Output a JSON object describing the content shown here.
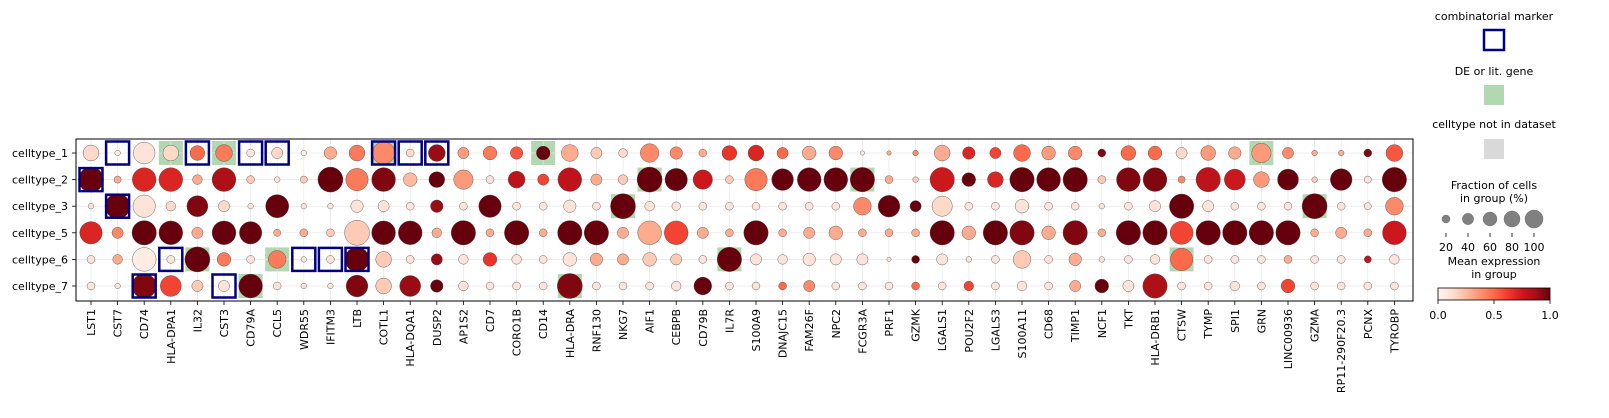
{
  "chart_data": {
    "type": "dotplot",
    "rows": [
      "celltype_1",
      "celltype_2",
      "celltype_3",
      "celltype_5",
      "celltype_6",
      "celltype_7"
    ],
    "genes": [
      "LST1",
      "CST7",
      "CD74",
      "HLA-DPA1",
      "IL32",
      "CST3",
      "CD79A",
      "CCL5",
      "WDR55",
      "IFITM3",
      "LTB",
      "COTL1",
      "HLA-DQA1",
      "DUSP2",
      "AP1S2",
      "CD7",
      "CORO1B",
      "CD14",
      "HLA-DRA",
      "RNF130",
      "NKG7",
      "AIF1",
      "CEBPB",
      "CD79B",
      "IL7R",
      "S100A9",
      "DNAJC15",
      "FAM26F",
      "NPC2",
      "FCGR3A",
      "PRF1",
      "GZMK",
      "LGALS1",
      "POU2F2",
      "LGALS3",
      "S100A11",
      "CD68",
      "TIMP1",
      "NCF1",
      "TKT",
      "HLA-DRB1",
      "CTSW",
      "TYMP",
      "SPI1",
      "GRN",
      "LINC00936",
      "GZMA",
      "RP11-290F20.3",
      "PCNX",
      "TYROBP"
    ],
    "size": [
      [
        40,
        5,
        75,
        40,
        35,
        45,
        10,
        20,
        5,
        25,
        40,
        80,
        10,
        45,
        20,
        30,
        25,
        30,
        45,
        20,
        12,
        55,
        25,
        10,
        35,
        40,
        20,
        30,
        30,
        3,
        3,
        5,
        40,
        25,
        20,
        45,
        30,
        30,
        10,
        35,
        30,
        20,
        35,
        25,
        60,
        20,
        5,
        5,
        10,
        45
      ],
      [
        100,
        8,
        90,
        90,
        15,
        90,
        10,
        5,
        8,
        100,
        80,
        90,
        30,
        40,
        60,
        10,
        45,
        20,
        90,
        20,
        15,
        100,
        80,
        60,
        10,
        80,
        75,
        90,
        90,
        95,
        10,
        5,
        95,
        30,
        40,
        95,
        90,
        95,
        10,
        90,
        90,
        8,
        95,
        70,
        40,
        70,
        5,
        75,
        8,
        95
      ],
      [
        5,
        100,
        80,
        15,
        70,
        20,
        5,
        85,
        5,
        5,
        25,
        20,
        10,
        25,
        10,
        80,
        10,
        10,
        25,
        10,
        100,
        15,
        12,
        10,
        10,
        10,
        10,
        10,
        10,
        50,
        75,
        20,
        65,
        10,
        10,
        30,
        10,
        10,
        5,
        10,
        20,
        95,
        20,
        10,
        10,
        10,
        100,
        10,
        8,
        50
      ],
      [
        80,
        20,
        95,
        90,
        20,
        90,
        80,
        8,
        10,
        10,
        100,
        90,
        90,
        15,
        95,
        10,
        95,
        10,
        95,
        95,
        20,
        90,
        90,
        20,
        10,
        95,
        10,
        20,
        30,
        10,
        10,
        10,
        95,
        30,
        95,
        95,
        30,
        95,
        10,
        95,
        95,
        85,
        95,
        95,
        95,
        95,
        10,
        20,
        10,
        90
      ],
      [
        10,
        15,
        90,
        10,
        100,
        30,
        10,
        50,
        5,
        10,
        95,
        40,
        10,
        20,
        15,
        30,
        15,
        10,
        30,
        25,
        20,
        30,
        20,
        10,
        95,
        20,
        15,
        25,
        20,
        20,
        3,
        10,
        20,
        5,
        10,
        50,
        10,
        25,
        5,
        10,
        15,
        80,
        10,
        10,
        10,
        10,
        10,
        10,
        8,
        15
      ],
      [
        10,
        5,
        95,
        70,
        20,
        20,
        90,
        10,
        5,
        5,
        75,
        40,
        70,
        25,
        15,
        10,
        10,
        10,
        100,
        10,
        10,
        10,
        15,
        50,
        10,
        10,
        10,
        20,
        10,
        10,
        10,
        10,
        10,
        15,
        10,
        15,
        10,
        20,
        30,
        20,
        95,
        10,
        10,
        15,
        10,
        30,
        10,
        10,
        10,
        10
      ]
    ],
    "expression": [
      [
        0.15,
        0.05,
        0.1,
        0.15,
        0.5,
        0.45,
        0.1,
        0.15,
        0.05,
        0.3,
        0.45,
        0.4,
        0.15,
        0.9,
        0.35,
        0.45,
        0.55,
        1.0,
        0.3,
        0.2,
        0.15,
        0.4,
        0.4,
        0.3,
        0.65,
        0.7,
        0.5,
        0.3,
        0.4,
        0.05,
        0.3,
        0.4,
        0.3,
        0.7,
        0.6,
        0.5,
        0.35,
        0.4,
        0.95,
        0.5,
        0.5,
        0.15,
        0.35,
        0.3,
        0.35,
        0.4,
        0.3,
        0.3,
        0.95,
        0.55
      ],
      [
        1.0,
        0.3,
        0.7,
        0.7,
        0.3,
        0.85,
        0.2,
        0.1,
        0.2,
        1.0,
        0.45,
        0.95,
        0.25,
        1.0,
        0.35,
        0.1,
        0.8,
        0.6,
        0.8,
        0.3,
        0.2,
        1.0,
        1.0,
        0.75,
        0.2,
        0.45,
        1.0,
        1.0,
        1.0,
        1.0,
        0.3,
        0.2,
        0.75,
        1.0,
        0.7,
        1.0,
        1.0,
        1.0,
        0.2,
        0.95,
        0.95,
        0.4,
        0.8,
        0.75,
        0.35,
        1.0,
        0.2,
        1.0,
        0.1,
        1.0
      ],
      [
        0.1,
        1.0,
        0.1,
        0.15,
        0.95,
        0.15,
        0.1,
        1.0,
        0.1,
        0.1,
        0.1,
        0.1,
        0.1,
        0.9,
        0.1,
        1.0,
        0.1,
        0.1,
        0.1,
        0.1,
        1.0,
        0.1,
        0.1,
        0.1,
        0.1,
        0.1,
        0.1,
        0.1,
        0.1,
        0.4,
        1.0,
        1.0,
        0.15,
        0.1,
        0.1,
        0.1,
        0.1,
        0.1,
        0.1,
        0.1,
        0.1,
        1.0,
        0.1,
        0.1,
        0.1,
        0.1,
        1.0,
        0.1,
        0.1,
        0.4
      ],
      [
        0.7,
        0.4,
        1.0,
        1.0,
        0.3,
        1.0,
        1.0,
        0.3,
        0.3,
        0.2,
        0.2,
        1.0,
        1.0,
        0.3,
        1.0,
        0.3,
        1.0,
        0.3,
        1.0,
        1.0,
        0.3,
        0.3,
        0.6,
        0.3,
        0.3,
        1.0,
        0.3,
        0.3,
        0.3,
        0.3,
        0.3,
        0.3,
        1.0,
        0.3,
        1.0,
        0.95,
        0.3,
        0.95,
        0.3,
        1.0,
        1.0,
        0.6,
        1.0,
        1.0,
        1.0,
        1.0,
        0.3,
        0.3,
        0.3,
        0.75
      ],
      [
        0.1,
        0.3,
        0.05,
        0.1,
        1.0,
        0.45,
        0.1,
        0.45,
        0.1,
        0.1,
        1.0,
        0.2,
        0.1,
        0.9,
        0.1,
        0.65,
        0.1,
        0.1,
        0.1,
        0.3,
        0.3,
        0.2,
        0.2,
        0.1,
        1.0,
        0.1,
        0.1,
        0.1,
        0.1,
        0.1,
        0.1,
        1.0,
        0.1,
        0.1,
        0.1,
        0.2,
        0.1,
        0.3,
        0.1,
        0.1,
        0.1,
        0.5,
        0.1,
        0.1,
        0.1,
        0.3,
        0.1,
        0.1,
        0.8,
        0.1
      ],
      [
        0.1,
        0.1,
        0.95,
        0.6,
        0.2,
        0.1,
        1.0,
        0.1,
        0.1,
        0.1,
        0.95,
        0.2,
        0.9,
        1.0,
        0.1,
        0.1,
        0.1,
        0.1,
        0.95,
        0.1,
        0.1,
        0.1,
        0.1,
        1.0,
        0.1,
        0.1,
        0.5,
        0.4,
        0.1,
        0.1,
        0.1,
        0.5,
        0.1,
        0.6,
        0.1,
        0.1,
        0.1,
        0.3,
        1.0,
        0.1,
        0.85,
        0.1,
        0.1,
        0.1,
        0.1,
        0.6,
        0.1,
        0.1,
        0.1,
        0.1
      ]
    ],
    "combinatorial_marker": [
      [
        0,
        1
      ],
      [
        0,
        4
      ],
      [
        0,
        6
      ],
      [
        0,
        7
      ],
      [
        0,
        11
      ],
      [
        0,
        12
      ],
      [
        0,
        13
      ],
      [
        1,
        0
      ],
      [
        2,
        1
      ],
      [
        5,
        2
      ],
      [
        4,
        3
      ],
      [
        5,
        5
      ],
      [
        4,
        8
      ],
      [
        4,
        9
      ],
      [
        4,
        10
      ]
    ],
    "de_gene": [
      [
        0,
        3
      ],
      [
        0,
        5
      ],
      [
        0,
        11
      ],
      [
        0,
        17
      ],
      [
        0,
        44
      ],
      [
        1,
        21
      ],
      [
        1,
        29
      ],
      [
        2,
        20
      ],
      [
        2,
        46
      ],
      [
        4,
        4
      ],
      [
        4,
        7
      ],
      [
        4,
        24
      ],
      [
        4,
        41
      ],
      [
        5,
        6
      ],
      [
        5,
        18
      ]
    ],
    "legend": {
      "marker_title": "combinatorial marker",
      "de_title": "DE or lit. gene",
      "missing_title": "celltype not in dataset",
      "size_title": "Fraction of cells\nin group (%)",
      "size_ticks": [
        20,
        40,
        60,
        80,
        100
      ],
      "color_title": "Mean expression\nin group",
      "color_ticks": [
        0.0,
        0.5,
        1.0
      ],
      "color_tick_labels": [
        "0.0",
        "0.5",
        "1.0"
      ]
    },
    "colormap": "Reds",
    "colors": {
      "marker_edge": "#000080",
      "de_fill": "#b2d8b2",
      "missing_fill": "#d9d9d9",
      "size_legend_fill": "#808080"
    }
  }
}
